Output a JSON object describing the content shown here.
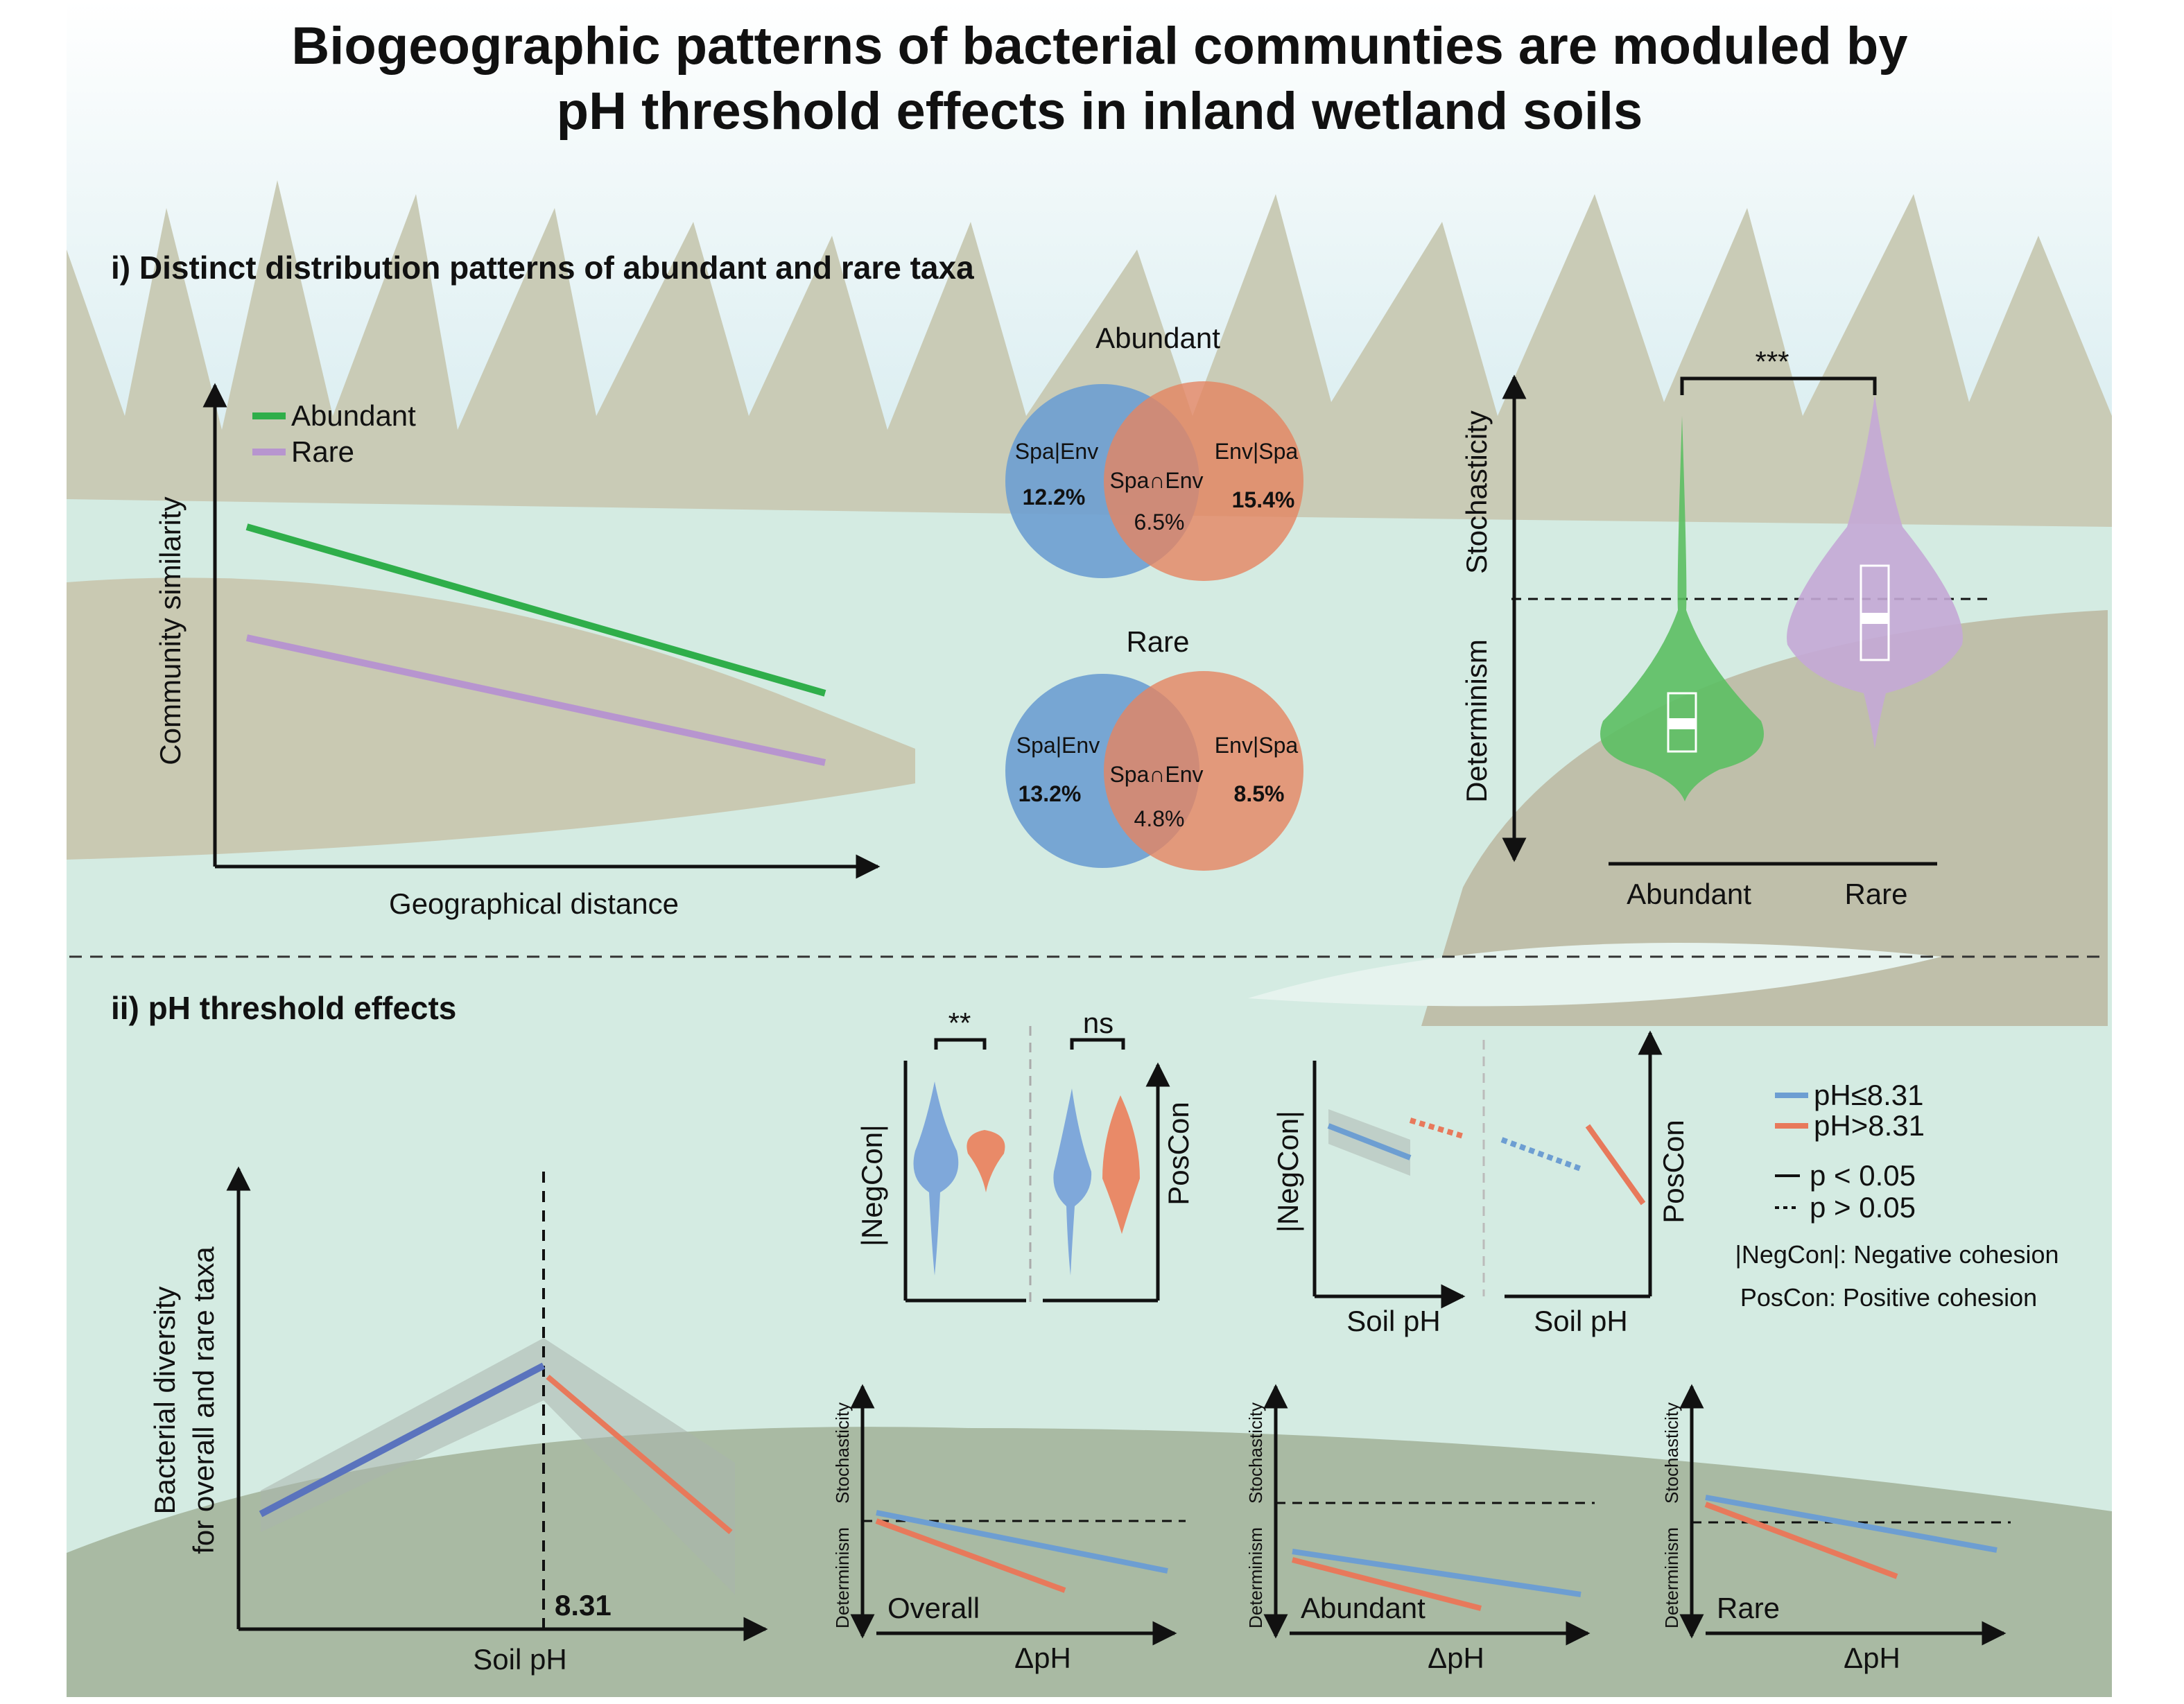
{
  "title_lines": [
    "Biogeographic patterns of bacterial communties are moduled by",
    "pH threshold effects in inland wetland soils"
  ],
  "section_i": {
    "heading": "i) Distinct distribution patterns of abundant and rare taxa",
    "distance_decay": {
      "legend": [
        "Abundant",
        "Rare"
      ],
      "y_label": "Community similarity",
      "x_label": "Geographical distance"
    },
    "venn": [
      {
        "title": "Abundant",
        "left_label": "Spa|Env",
        "left_value": "12.2%",
        "middle_label": "Spa∩Env",
        "middle_value": "6.5%",
        "right_label": "Env|Spa",
        "right_value": "15.4%"
      },
      {
        "title": "Rare",
        "left_label": "Spa|Env",
        "left_value": "13.2%",
        "middle_label": "Spa∩Env",
        "middle_value": "4.8%",
        "right_label": "Env|Spa",
        "right_value": "8.5%"
      }
    ],
    "violin": {
      "significance": "***",
      "upper": "Stochasticity",
      "lower": "Determinism",
      "categories": [
        "Abundant",
        "Rare"
      ]
    }
  },
  "section_ii": {
    "heading": "ii) pH threshold effects",
    "diversity": {
      "y_label_lines": [
        "Bacterial diversity",
        "for overall and rare taxa"
      ],
      "x_label": "Soil pH",
      "threshold": "8.31"
    },
    "cohesion_violin": {
      "significance": [
        "**",
        "ns"
      ],
      "left_axis": "|NegCon|",
      "right_axis": "PosCon"
    },
    "cohesion_lines": {
      "left_axis": "|NegCon|",
      "right_axis": "PosCon",
      "x_labels": [
        "Soil pH",
        "Soil pH"
      ]
    },
    "legend": {
      "groups": [
        "pH≤8.31",
        "pH>8.31"
      ],
      "significance": [
        "p < 0.05",
        "p > 0.05"
      ],
      "definitions": [
        "|NegCon|: Negative cohesion",
        "PosCon: Positive cohesion"
      ]
    },
    "stochasticity_panels": [
      {
        "label": "Overall",
        "upper": "Stochasticity",
        "lower": "Determinism",
        "x_label": "ΔpH"
      },
      {
        "label": "Abundant",
        "upper": "Stochasticity",
        "lower": "Determinism",
        "x_label": "ΔpH"
      },
      {
        "label": "Rare",
        "upper": "Stochasticity",
        "lower": "Determinism",
        "x_label": "ΔpH"
      }
    ]
  }
}
